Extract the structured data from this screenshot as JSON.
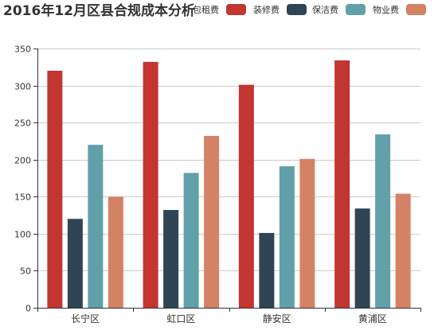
{
  "chart_data": {
    "type": "bar",
    "title": "2016年12月区县合规成本分析",
    "categories": [
      "长宁区",
      "虹口区",
      "静安区",
      "黄浦区"
    ],
    "series": [
      {
        "name": "包租费",
        "color": "#c23531",
        "values": [
          320,
          332,
          301,
          334
        ]
      },
      {
        "name": "装修费",
        "color": "#2f4554",
        "values": [
          120,
          132,
          101,
          134
        ]
      },
      {
        "name": "保洁费",
        "color": "#61a0a8",
        "values": [
          220,
          182,
          191,
          234
        ]
      },
      {
        "name": "物业费",
        "color": "#d48265",
        "values": [
          150,
          232,
          201,
          154
        ]
      }
    ],
    "ylim": [
      0,
      350
    ],
    "yticks": [
      0,
      50,
      100,
      150,
      200,
      250,
      300,
      350
    ],
    "xlabel": "",
    "ylabel": "",
    "grid": true,
    "legend_position": "top-right"
  }
}
